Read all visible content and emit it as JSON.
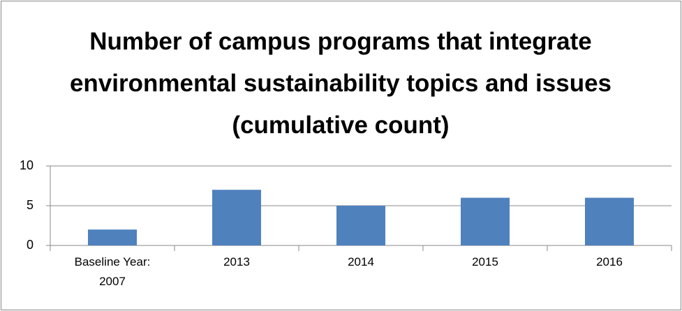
{
  "chart_data": {
    "type": "bar",
    "title": "Number of campus programs that integrate environmental sustainability topics and issues (cumulative count)",
    "categories": [
      "Baseline Year: 2007",
      "2013",
      "2014",
      "2015",
      "2016"
    ],
    "values": [
      2,
      7,
      5,
      6,
      6
    ],
    "color": "#4f81bd",
    "ylim": [
      0,
      10
    ],
    "yticks": [
      0,
      5,
      10
    ],
    "grid": true
  }
}
